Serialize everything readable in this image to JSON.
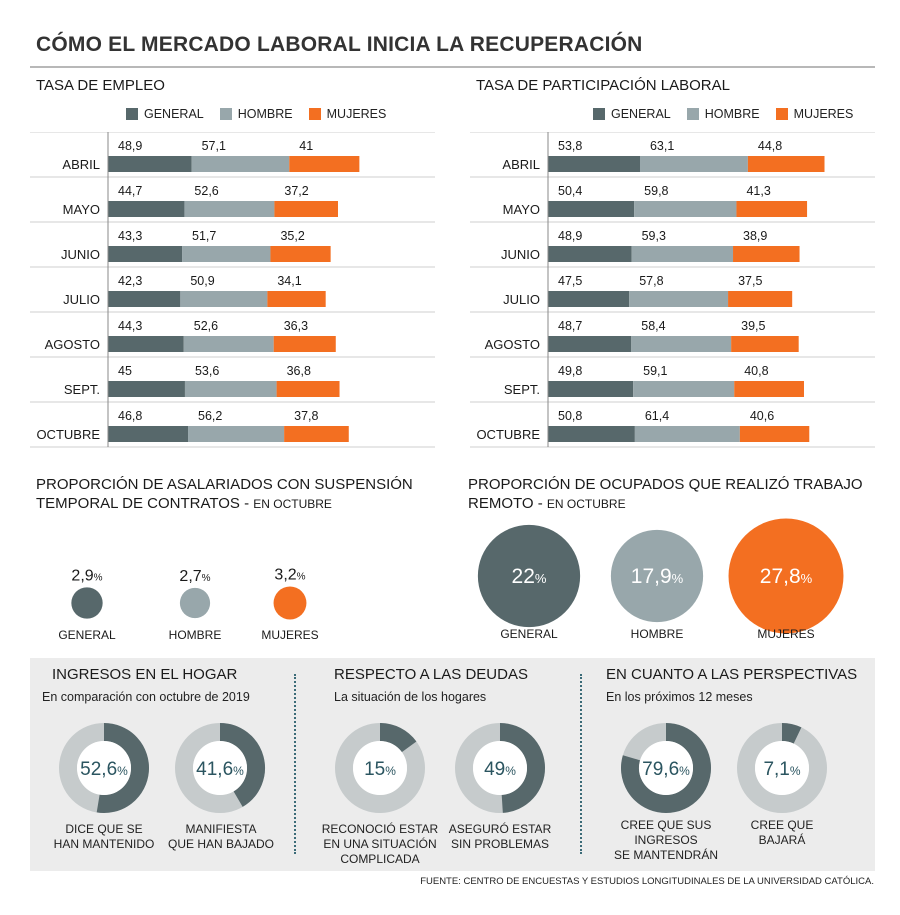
{
  "title": "CÓMO EL MERCADO LABORAL INICIA LA RECUPERACIÓN",
  "colors": {
    "general": "#57686b",
    "hombre": "#98a7ab",
    "mujeres": "#f36f21",
    "accent_text": "#2b5560",
    "donut_track": "#c6cbcc"
  },
  "legend": {
    "general": "GENERAL",
    "hombre": "HOMBRE",
    "mujeres": "MUJERES"
  },
  "chart_data": [
    {
      "type": "bar",
      "title": "TASA DE EMPLEO",
      "categories": [
        "ABRIL",
        "MAYO",
        "JUNIO",
        "JULIO",
        "AGOSTO",
        "SEPT.",
        "OCTUBRE"
      ],
      "series": [
        {
          "name": "GENERAL",
          "values": [
            "48,9",
            "44,7",
            "43,3",
            "42,3",
            "44,3",
            "45",
            "46,8"
          ]
        },
        {
          "name": "HOMBRE",
          "values": [
            "57,1",
            "52,6",
            "51,7",
            "50,9",
            "52,6",
            "53,6",
            "56,2"
          ]
        },
        {
          "name": "MUJERES",
          "values": [
            "41",
            "37,2",
            "35,2",
            "34,1",
            "36,3",
            "36,8",
            "37,8"
          ]
        }
      ]
    },
    {
      "type": "bar",
      "title": "TASA DE PARTICIPACIÓN LABORAL",
      "categories": [
        "ABRIL",
        "MAYO",
        "JUNIO",
        "JULIO",
        "AGOSTO",
        "SEPT.",
        "OCTUBRE"
      ],
      "series": [
        {
          "name": "GENERAL",
          "values": [
            "53,8",
            "50,4",
            "48,9",
            "47,5",
            "48,7",
            "49,8",
            "50,8"
          ]
        },
        {
          "name": "HOMBRE",
          "values": [
            "63,1",
            "59,8",
            "59,3",
            "57,8",
            "58,4",
            "59,1",
            "61,4"
          ]
        },
        {
          "name": "MUJERES",
          "values": [
            "44,8",
            "41,3",
            "38,9",
            "37,5",
            "39,5",
            "40,8",
            "40,6"
          ]
        }
      ]
    },
    {
      "type": "bubble",
      "title": "PROPORCIÓN DE ASALARIADOS CON SUSPENSIÓN",
      "title_line2": "TEMPORAL DE CONTRATOS -",
      "subtitle": "EN OCTUBRE",
      "items": [
        {
          "label": "GENERAL",
          "value": "2,9",
          "unit": "%"
        },
        {
          "label": "HOMBRE",
          "value": "2,7",
          "unit": "%"
        },
        {
          "label": "MUJERES",
          "value": "3,2",
          "unit": "%"
        }
      ]
    },
    {
      "type": "bubble",
      "title": "PROPORCIÓN DE OCUPADOS QUE REALIZÓ TRABAJO",
      "title_line2": "REMOTO -",
      "subtitle": "EN OCTUBRE",
      "items": [
        {
          "label": "GENERAL",
          "value": "22",
          "unit": "%"
        },
        {
          "label": "HOMBRE",
          "value": "17,9",
          "unit": "%"
        },
        {
          "label": "MUJERES",
          "value": "27,8",
          "unit": "%"
        }
      ]
    },
    {
      "type": "pie",
      "title": "INGRESOS EN EL HOGAR",
      "subtitle": "En comparación con octubre de 2019",
      "items": [
        {
          "value": "52,6",
          "unit": "%",
          "caption": "DICE QUE SE\nHAN MANTENIDO"
        },
        {
          "value": "41,6",
          "unit": "%",
          "caption": "MANIFIESTA\nQUE HAN BAJADO"
        }
      ]
    },
    {
      "type": "pie",
      "title": "RESPECTO A LAS DEUDAS",
      "subtitle": "La situación de los hogares",
      "items": [
        {
          "value": "15",
          "unit": "%",
          "caption": "RECONOCIÓ ESTAR\nEN UNA SITUACIÓN\nCOMPLICADA"
        },
        {
          "value": "49",
          "unit": "%",
          "caption": "ASEGURÓ ESTAR\nSIN PROBLEMAS"
        }
      ]
    },
    {
      "type": "pie",
      "title": "EN CUANTO A LAS PERSPECTIVAS",
      "subtitle": "En los próximos 12 meses",
      "items": [
        {
          "value": "79,6",
          "unit": "%",
          "caption": "CREE QUE SUS\nINGRESOS\nSE MANTENDRÁN"
        },
        {
          "value": "7,1",
          "unit": "%",
          "caption": "CREE QUE\nBAJARÁ"
        }
      ]
    }
  ],
  "source": "FUENTE: CENTRO DE ENCUESTAS Y ESTUDIOS LONGITUDINALES DE LA UNIVERSIDAD CATÓLICA."
}
